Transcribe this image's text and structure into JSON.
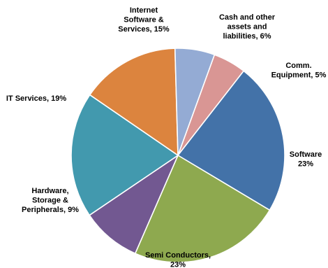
{
  "chart_data": {
    "type": "pie",
    "title": "",
    "start_angle_deg": 20,
    "direction": "clockwise",
    "legend": "none",
    "slices": [
      {
        "label": [
          "Comm.",
          "Equipment, 5%"
        ],
        "value": 5,
        "color": "#d99694"
      },
      {
        "label": [
          "Software",
          "23%"
        ],
        "value": 23,
        "color": "#4372a8"
      },
      {
        "label": [
          "Semi Conductors,",
          "23%"
        ],
        "value": 23,
        "color": "#8ea94f"
      },
      {
        "label": [
          "Hardware,",
          "Storage &",
          "Peripherals, 9%"
        ],
        "value": 9,
        "color": "#725891"
      },
      {
        "label": [
          "IT Services, 19%"
        ],
        "value": 19,
        "color": "#4299ae"
      },
      {
        "label": [
          "Internet",
          "Software &",
          "Services, 15%"
        ],
        "value": 15,
        "color": "#dc843e"
      },
      {
        "label": [
          "Cash and other",
          "assets and",
          "liabilities, 6%"
        ],
        "value": 6,
        "color": "#94abd4"
      }
    ]
  }
}
